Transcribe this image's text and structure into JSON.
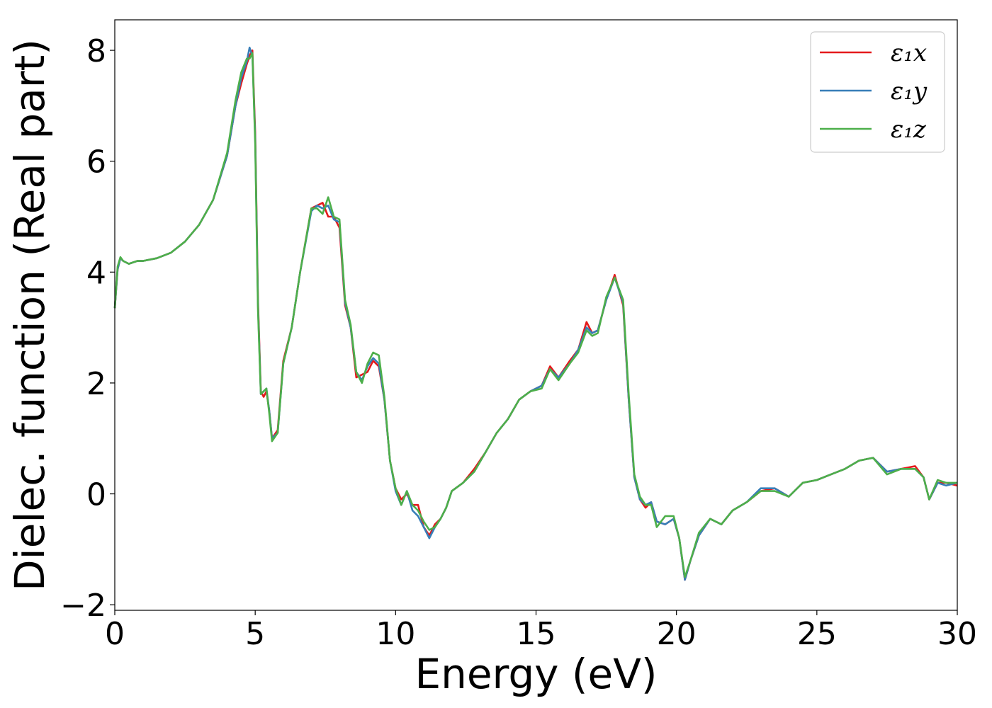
{
  "chart_data": {
    "type": "line",
    "title": "",
    "xlabel": "Energy (eV)",
    "ylabel": "Dielec. function (Real part)",
    "xlim": [
      0,
      30
    ],
    "ylim": [
      -2.1,
      8.55
    ],
    "xticks": [
      0,
      5,
      10,
      15,
      20,
      25,
      30
    ],
    "xtick_labels": [
      "0",
      "5",
      "10",
      "15",
      "20",
      "25",
      "30"
    ],
    "yticks": [
      -2,
      0,
      2,
      4,
      6,
      8
    ],
    "ytick_labels": [
      "−2",
      "0",
      "2",
      "4",
      "6",
      "8"
    ],
    "grid": false,
    "legend_position": "top-right",
    "colors": {
      "x": "#e41a1c",
      "y": "#377eb8",
      "z": "#4daf4a"
    },
    "x": [
      0,
      0.1,
      0.2,
      0.3,
      0.5,
      0.8,
      1.0,
      1.5,
      2.0,
      2.5,
      3.0,
      3.5,
      4.0,
      4.3,
      4.5,
      4.7,
      4.8,
      4.9,
      5.0,
      5.1,
      5.2,
      5.3,
      5.4,
      5.5,
      5.6,
      5.8,
      6.0,
      6.3,
      6.6,
      7.0,
      7.2,
      7.4,
      7.6,
      7.8,
      8.0,
      8.2,
      8.4,
      8.6,
      8.8,
      9.0,
      9.2,
      9.4,
      9.6,
      9.8,
      10.0,
      10.2,
      10.4,
      10.6,
      10.8,
      11.0,
      11.2,
      11.4,
      11.6,
      11.8,
      12.0,
      12.4,
      12.8,
      13.2,
      13.6,
      14.0,
      14.4,
      14.8,
      15.2,
      15.5,
      15.8,
      16.2,
      16.5,
      16.8,
      17.0,
      17.2,
      17.5,
      17.8,
      18.1,
      18.3,
      18.5,
      18.7,
      18.9,
      19.1,
      19.3,
      19.6,
      19.9,
      20.1,
      20.3,
      20.5,
      20.8,
      21.2,
      21.6,
      22.0,
      22.5,
      23.0,
      23.5,
      24.0,
      24.5,
      25.0,
      25.5,
      26.0,
      26.5,
      27.0,
      27.5,
      28.0,
      28.5,
      28.8,
      29.0,
      29.3,
      29.6,
      30.0
    ],
    "series": [
      {
        "name": "ε₁x",
        "values": [
          3.35,
          4.05,
          4.25,
          4.2,
          4.15,
          4.2,
          4.2,
          4.25,
          4.35,
          4.55,
          4.85,
          5.3,
          6.1,
          7.0,
          7.4,
          7.75,
          7.9,
          8.0,
          6.5,
          3.5,
          1.85,
          1.75,
          1.85,
          1.5,
          1.0,
          1.15,
          2.4,
          3.0,
          4.0,
          5.15,
          5.2,
          5.25,
          5.0,
          5.0,
          4.8,
          3.4,
          3.0,
          2.1,
          2.15,
          2.2,
          2.4,
          2.3,
          1.7,
          0.6,
          0.1,
          -0.1,
          0.0,
          -0.2,
          -0.2,
          -0.6,
          -0.75,
          -0.55,
          -0.45,
          -0.25,
          0.05,
          0.2,
          0.45,
          0.75,
          1.1,
          1.35,
          1.7,
          1.85,
          1.95,
          2.3,
          2.1,
          2.4,
          2.6,
          3.1,
          2.9,
          2.95,
          3.5,
          3.95,
          3.4,
          1.7,
          0.3,
          -0.1,
          -0.25,
          -0.15,
          -0.5,
          -0.55,
          -0.45,
          -0.8,
          -1.55,
          -1.2,
          -0.75,
          -0.45,
          -0.55,
          -0.3,
          -0.15,
          0.05,
          0.1,
          -0.05,
          0.2,
          0.25,
          0.35,
          0.45,
          0.6,
          0.65,
          0.4,
          0.45,
          0.5,
          0.3,
          -0.1,
          0.2,
          0.2,
          0.15
        ]
      },
      {
        "name": "ε₁y",
        "values": [
          3.35,
          4.05,
          4.25,
          4.2,
          4.15,
          4.2,
          4.2,
          4.25,
          4.35,
          4.55,
          4.85,
          5.3,
          6.1,
          7.0,
          7.5,
          7.8,
          8.05,
          7.9,
          6.4,
          3.4,
          1.8,
          1.85,
          1.9,
          1.5,
          1.0,
          1.1,
          2.35,
          3.0,
          4.0,
          5.1,
          5.2,
          5.15,
          5.2,
          4.95,
          4.9,
          3.45,
          3.0,
          2.2,
          2.05,
          2.3,
          2.45,
          2.35,
          1.7,
          0.6,
          0.05,
          -0.2,
          0.05,
          -0.3,
          -0.4,
          -0.6,
          -0.8,
          -0.6,
          -0.45,
          -0.25,
          0.05,
          0.2,
          0.4,
          0.75,
          1.1,
          1.35,
          1.7,
          1.85,
          1.95,
          2.25,
          2.1,
          2.35,
          2.6,
          3.0,
          2.9,
          2.95,
          3.5,
          3.9,
          3.45,
          1.7,
          0.3,
          -0.1,
          -0.2,
          -0.15,
          -0.5,
          -0.55,
          -0.45,
          -0.8,
          -1.55,
          -1.2,
          -0.75,
          -0.45,
          -0.55,
          -0.3,
          -0.15,
          0.1,
          0.1,
          -0.05,
          0.2,
          0.25,
          0.35,
          0.45,
          0.6,
          0.65,
          0.4,
          0.45,
          0.45,
          0.3,
          -0.1,
          0.2,
          0.15,
          0.2
        ]
      },
      {
        "name": "ε₁z",
        "values": [
          3.35,
          4.1,
          4.27,
          4.2,
          4.15,
          4.2,
          4.2,
          4.25,
          4.35,
          4.55,
          4.85,
          5.3,
          6.15,
          7.1,
          7.6,
          7.85,
          7.85,
          7.95,
          6.3,
          3.3,
          1.8,
          1.85,
          1.9,
          1.45,
          0.95,
          1.1,
          2.35,
          3.0,
          4.0,
          5.15,
          5.15,
          5.05,
          5.35,
          5.0,
          4.95,
          3.5,
          3.05,
          2.2,
          2.0,
          2.35,
          2.55,
          2.5,
          1.75,
          0.6,
          0.1,
          -0.2,
          0.05,
          -0.2,
          -0.3,
          -0.5,
          -0.65,
          -0.6,
          -0.45,
          -0.25,
          0.05,
          0.2,
          0.4,
          0.75,
          1.1,
          1.35,
          1.7,
          1.85,
          1.9,
          2.25,
          2.05,
          2.35,
          2.55,
          2.95,
          2.85,
          2.9,
          3.55,
          3.9,
          3.5,
          1.8,
          0.35,
          -0.05,
          -0.2,
          -0.2,
          -0.6,
          -0.4,
          -0.4,
          -0.8,
          -1.5,
          -1.2,
          -0.7,
          -0.45,
          -0.55,
          -0.3,
          -0.15,
          0.05,
          0.05,
          -0.05,
          0.2,
          0.25,
          0.35,
          0.45,
          0.6,
          0.65,
          0.35,
          0.45,
          0.45,
          0.3,
          -0.1,
          0.25,
          0.2,
          0.2
        ]
      }
    ]
  }
}
